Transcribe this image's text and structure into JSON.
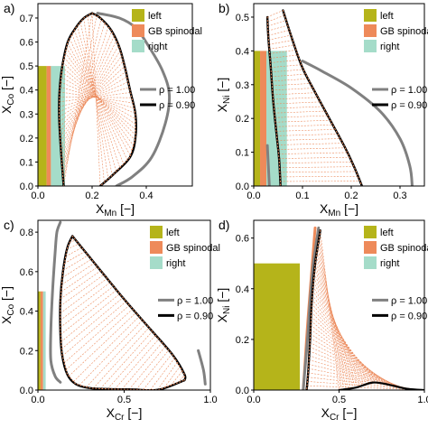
{
  "colors": {
    "left": "#b5b41a",
    "gb": "#ee8a5a",
    "right": "#a5dcc9",
    "tie": "#ec8c5e",
    "rho100": "#808080",
    "rho090": "#000000"
  },
  "chart_data": [
    {
      "type": "line",
      "panel_label": "a)",
      "xlabel_main": "X",
      "xlabel_sub": "Mn",
      "xlabel_unit": " [−]",
      "ylabel_main": "X",
      "ylabel_sub": "Co",
      "ylabel_unit": " [−]",
      "xlim": [
        0,
        0.57
      ],
      "ylim": [
        0,
        0.76
      ],
      "xticks": [
        0,
        0.2,
        0.4
      ],
      "xticklabels": [
        "0.0",
        "0.2",
        "0.4"
      ],
      "yticks": [
        0,
        0.1,
        0.2,
        0.3,
        0.4,
        0.5,
        0.6,
        0.7
      ],
      "yticklabels": [
        "0.0",
        "0.1",
        "0.2",
        "0.3",
        "0.4",
        "0.5",
        "0.6",
        "0.7"
      ],
      "legend": {
        "items": [
          "left",
          "GB spinodal",
          "right"
        ],
        "position": "top-right"
      },
      "rho_legend": {
        "labels": [
          "ρ = 1.00",
          "ρ = 0.90"
        ],
        "position": "center-right"
      },
      "regions": [
        {
          "name": "left",
          "x": [
            0,
            0.032
          ],
          "y": [
            0,
            0.5
          ]
        },
        {
          "name": "GB spinodal",
          "x": [
            0.032,
            0.048
          ],
          "y": [
            0,
            0.5
          ]
        },
        {
          "name": "right",
          "x": [
            0.048,
            0.1
          ],
          "y": [
            0,
            0.5
          ]
        }
      ],
      "rho_090_left": [
        [
          0.095,
          0.0
        ],
        [
          0.088,
          0.1
        ],
        [
          0.082,
          0.2
        ],
        [
          0.078,
          0.3
        ],
        [
          0.08,
          0.4
        ],
        [
          0.09,
          0.5
        ],
        [
          0.11,
          0.6
        ],
        [
          0.14,
          0.66
        ],
        [
          0.17,
          0.7
        ],
        [
          0.2,
          0.72
        ]
      ],
      "rho_090_right": [
        [
          0.2,
          0.72
        ],
        [
          0.23,
          0.7
        ],
        [
          0.27,
          0.65
        ],
        [
          0.3,
          0.58
        ],
        [
          0.32,
          0.5
        ],
        [
          0.34,
          0.4
        ],
        [
          0.36,
          0.3
        ],
        [
          0.36,
          0.2
        ],
        [
          0.34,
          0.12
        ],
        [
          0.28,
          0.05
        ],
        [
          0.23,
          0.0
        ]
      ],
      "rho_100": [
        [
          0.22,
          0.72
        ],
        [
          0.3,
          0.7
        ],
        [
          0.36,
          0.66
        ],
        [
          0.41,
          0.58
        ],
        [
          0.46,
          0.48
        ],
        [
          0.485,
          0.38
        ],
        [
          0.47,
          0.26
        ],
        [
          0.42,
          0.12
        ],
        [
          0.35,
          0.04
        ],
        [
          0.29,
          0.0
        ]
      ]
    },
    {
      "type": "line",
      "panel_label": "b)",
      "xlabel_main": "X",
      "xlabel_sub": "Mn",
      "xlabel_unit": " [−]",
      "ylabel_main": "X",
      "ylabel_sub": "Ni",
      "ylabel_unit": " [−]",
      "xlim": [
        0,
        0.35
      ],
      "ylim": [
        0,
        0.54
      ],
      "xticks": [
        0,
        0.1,
        0.2,
        0.3
      ],
      "xticklabels": [
        "0.0",
        "0.1",
        "0.2",
        "0.3"
      ],
      "yticks": [
        0,
        0.1,
        0.2,
        0.3,
        0.4,
        0.5
      ],
      "yticklabels": [
        "0.0",
        "0.1",
        "0.2",
        "0.3",
        "0.4",
        "0.5"
      ],
      "legend": {
        "items": [
          "left",
          "GB spinodal",
          "right"
        ],
        "position": "top-right"
      },
      "rho_legend": {
        "labels": [
          "ρ = 1.00",
          "ρ = 0.90"
        ],
        "position": "center-right"
      },
      "regions": [
        {
          "name": "left",
          "x": [
            0,
            0.013
          ],
          "y": [
            0,
            0.4
          ]
        },
        {
          "name": "GB spinodal",
          "x": [
            0.013,
            0.026
          ],
          "y": [
            0,
            0.4
          ]
        },
        {
          "name": "right",
          "x": [
            0.026,
            0.068
          ],
          "y": [
            0,
            0.4
          ]
        }
      ],
      "rho_090_left": [
        [
          0.028,
          0.5
        ],
        [
          0.03,
          0.44
        ],
        [
          0.035,
          0.35
        ],
        [
          0.04,
          0.25
        ],
        [
          0.047,
          0.15
        ],
        [
          0.052,
          0.08
        ],
        [
          0.055,
          0.0
        ]
      ],
      "rho_090_right": [
        [
          0.06,
          0.52
        ],
        [
          0.08,
          0.43
        ],
        [
          0.1,
          0.35
        ],
        [
          0.125,
          0.28
        ],
        [
          0.155,
          0.2
        ],
        [
          0.185,
          0.12
        ],
        [
          0.205,
          0.06
        ],
        [
          0.222,
          0.0
        ]
      ],
      "rho_100": [
        [
          0.1,
          0.37
        ],
        [
          0.14,
          0.34
        ],
        [
          0.2,
          0.29
        ],
        [
          0.26,
          0.22
        ],
        [
          0.3,
          0.14
        ],
        [
          0.32,
          0.06
        ],
        [
          0.325,
          0.0
        ]
      ],
      "rho_100_left": [
        [
          0.032,
          0.0
        ],
        [
          0.03,
          0.06
        ],
        [
          0.028,
          0.12
        ]
      ]
    },
    {
      "type": "line",
      "panel_label": "c)",
      "xlabel_main": "X",
      "xlabel_sub": "Cr",
      "xlabel_unit": " [−]",
      "ylabel_main": "X",
      "ylabel_sub": "Co",
      "ylabel_unit": " [−]",
      "xlim": [
        0,
        1.0
      ],
      "ylim": [
        0,
        0.86
      ],
      "xticks": [
        0,
        0.5,
        1.0
      ],
      "xticklabels": [
        "0.0",
        "0.5",
        "1.0"
      ],
      "yticks": [
        0,
        0.2,
        0.4,
        0.6,
        0.8
      ],
      "yticklabels": [
        "0.0",
        "0.2",
        "0.4",
        "0.6",
        "0.8"
      ],
      "legend": {
        "items": [
          "left",
          "GB spinodal",
          "right"
        ],
        "position": "top-right"
      },
      "rho_legend": {
        "labels": [
          "ρ = 1.00",
          "ρ = 0.90"
        ],
        "position": "center-right"
      },
      "regions": [
        {
          "name": "left",
          "x": [
            0,
            0.015
          ],
          "y": [
            0,
            0.5
          ]
        },
        {
          "name": "GB spinodal",
          "x": [
            0.015,
            0.03
          ],
          "y": [
            0,
            0.5
          ]
        },
        {
          "name": "right",
          "x": [
            0.03,
            0.045
          ],
          "y": [
            0,
            0.5
          ]
        }
      ],
      "rho_090_left": [
        [
          0.2,
          0.78
        ],
        [
          0.17,
          0.72
        ],
        [
          0.145,
          0.6
        ],
        [
          0.13,
          0.45
        ],
        [
          0.13,
          0.3
        ],
        [
          0.14,
          0.18
        ],
        [
          0.17,
          0.08
        ],
        [
          0.22,
          0.03
        ],
        [
          0.3,
          0.01
        ],
        [
          0.42,
          0.005
        ],
        [
          0.55,
          0.003
        ],
        [
          0.7,
          0.002
        ],
        [
          0.85,
          0.05
        ]
      ],
      "rho_090_right": [
        [
          0.2,
          0.78
        ],
        [
          0.35,
          0.62
        ],
        [
          0.5,
          0.46
        ],
        [
          0.65,
          0.31
        ],
        [
          0.78,
          0.18
        ],
        [
          0.85,
          0.08
        ],
        [
          0.85,
          0.05
        ]
      ],
      "rho_100": [
        [
          0.13,
          0.85
        ],
        [
          0.11,
          0.8
        ],
        [
          0.1,
          0.7
        ],
        [
          0.085,
          0.5
        ],
        [
          0.075,
          0.3
        ],
        [
          0.075,
          0.15
        ],
        [
          0.1,
          0.07
        ],
        [
          0.13,
          0.04
        ]
      ],
      "rho_100_right": [
        [
          0.93,
          0.2
        ],
        [
          0.96,
          0.1
        ],
        [
          0.97,
          0.03
        ]
      ]
    },
    {
      "type": "line",
      "panel_label": "d)",
      "xlabel_main": "X",
      "xlabel_sub": "Cr",
      "xlabel_unit": " [−]",
      "ylabel_main": "X",
      "ylabel_sub": "Ni",
      "ylabel_unit": " [−]",
      "xlim": [
        0,
        1.0
      ],
      "ylim": [
        0,
        0.67
      ],
      "xticks": [
        0,
        0.5,
        1.0
      ],
      "xticklabels": [
        "0.0",
        "0.5",
        "1.0"
      ],
      "yticks": [
        0,
        0.2,
        0.4,
        0.6
      ],
      "yticklabels": [
        "0.0",
        "0.2",
        "0.4",
        "0.6"
      ],
      "legend": {
        "items": [
          "left",
          "GB spinodal",
          "right"
        ],
        "position": "top-right"
      },
      "rho_legend": {
        "labels": [
          "ρ = 1.00",
          "ρ = 0.90"
        ],
        "position": "center-right"
      },
      "regions": [
        {
          "name": "left",
          "x": [
            0,
            0.27
          ],
          "y": [
            0,
            0.5
          ]
        }
      ],
      "gb_curve": [
        [
          0.36,
          0.64
        ],
        [
          0.32,
          0.3
        ],
        [
          0.3,
          0.1
        ],
        [
          0.29,
          0.0
        ]
      ],
      "rho_090_left": [
        [
          0.39,
          0.63
        ],
        [
          0.36,
          0.5
        ],
        [
          0.34,
          0.35
        ],
        [
          0.33,
          0.2
        ],
        [
          0.32,
          0.08
        ],
        [
          0.31,
          0.0
        ]
      ],
      "rho_090_bottom": [
        [
          0.5,
          0.0
        ],
        [
          0.6,
          0.01
        ],
        [
          0.7,
          0.03
        ],
        [
          0.8,
          0.02
        ],
        [
          0.9,
          0.005
        ],
        [
          1.0,
          0.0
        ]
      ],
      "rho_100": [
        [
          0.38,
          0.64
        ],
        [
          0.35,
          0.5
        ],
        [
          0.33,
          0.35
        ],
        [
          0.315,
          0.2
        ],
        [
          0.3,
          0.08
        ],
        [
          0.29,
          0.0
        ]
      ]
    }
  ]
}
